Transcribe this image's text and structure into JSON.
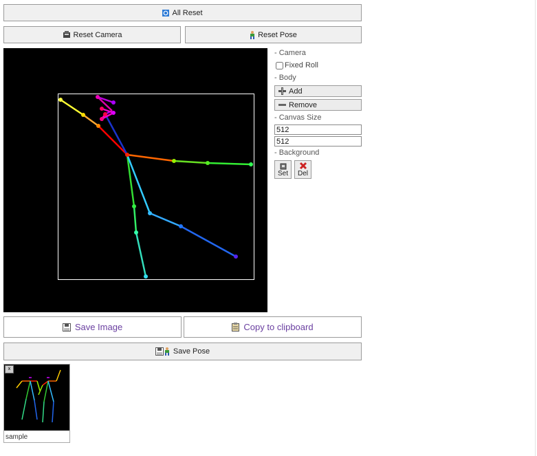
{
  "toolbar": {
    "all_reset": "All Reset",
    "reset_camera": "Reset Camera",
    "reset_pose": "Reset Pose"
  },
  "panel": {
    "camera_section": "- Camera",
    "fixed_roll_label": "Fixed Roll",
    "fixed_roll_checked": false,
    "body_section": "- Body",
    "add_label": "Add",
    "remove_label": "Remove",
    "canvas_size_section": "- Canvas Size",
    "canvas_width": "512",
    "canvas_height": "512",
    "background_section": "- Background",
    "set_label": "Set",
    "del_label": "Del"
  },
  "actions": {
    "save_image": "Save Image",
    "copy_clipboard": "Copy to clipboard",
    "save_pose": "Save Pose"
  },
  "saved_poses": [
    {
      "caption": "sample",
      "close_label": "x"
    }
  ],
  "icons": {
    "all_reset": "reset-icon",
    "reset_camera": "camera-icon",
    "reset_pose": "person-icon",
    "add": "plus-icon",
    "remove": "minus-icon",
    "set": "image-icon",
    "del": "delete-x-icon",
    "save_image": "floppy-icon",
    "copy": "clipboard-icon",
    "save_pose": "floppy-person-icon"
  },
  "colors": {
    "canvas_bg": "#000000",
    "link_text": "#6a3fa0",
    "button_bg": "#f0f0f0"
  }
}
